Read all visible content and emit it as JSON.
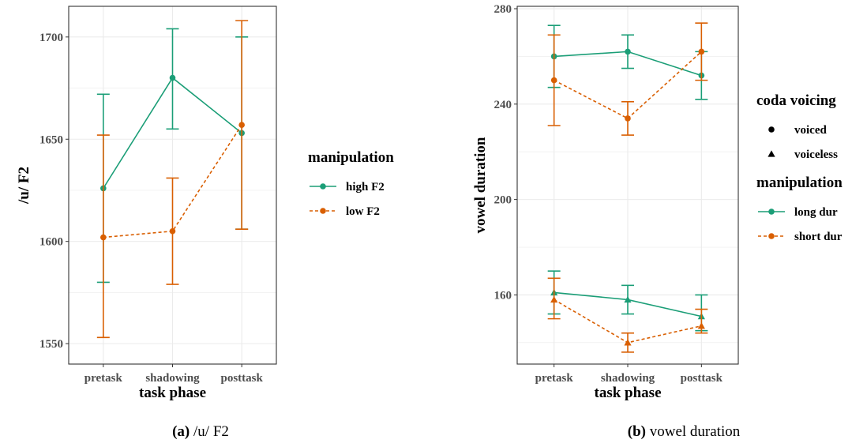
{
  "chart_data": [
    {
      "type": "line",
      "xlabel": "task phase",
      "ylabel": "/u/ F2",
      "categories": [
        "pretask",
        "shadowing",
        "posttask"
      ],
      "ylim": [
        1540,
        1715
      ],
      "yticks": [
        1550,
        1600,
        1650,
        1700
      ],
      "grid": true,
      "legend": {
        "title": "manipulation",
        "placement": "right"
      },
      "caption": {
        "label": "(a)",
        "text": "/u/ F2"
      },
      "series": [
        {
          "name": "high F2",
          "color": "#1b9e77",
          "dash": "solid",
          "shape": "circle",
          "values": [
            1626,
            1680,
            1653
          ],
          "err_low": [
            1580,
            1655,
            1606
          ],
          "err_high": [
            1672,
            1704,
            1700
          ]
        },
        {
          "name": "low F2",
          "color": "#d95f02",
          "dash": "dashed",
          "shape": "circle",
          "values": [
            1602,
            1605,
            1657
          ],
          "err_low": [
            1553,
            1579,
            1606
          ],
          "err_high": [
            1652,
            1631,
            1708
          ]
        }
      ]
    },
    {
      "type": "line",
      "xlabel": "task phase",
      "ylabel": "vowel duration",
      "categories": [
        "pretask",
        "shadowing",
        "posttask"
      ],
      "ylim": [
        131,
        281
      ],
      "yticks": [
        160,
        200,
        240,
        280
      ],
      "grid": true,
      "legend": [
        {
          "title": "coda voicing",
          "placement": "right",
          "items": [
            {
              "name": "voiced",
              "shape": "circle"
            },
            {
              "name": "voiceless",
              "shape": "triangle"
            }
          ]
        },
        {
          "title": "manipulation",
          "placement": "right",
          "items": [
            {
              "name": "long dur",
              "color": "#1b9e77",
              "dash": "solid"
            },
            {
              "name": "short dur",
              "color": "#d95f02",
              "dash": "dashed"
            }
          ]
        }
      ],
      "caption": {
        "label": "(b)",
        "text": "vowel duration"
      },
      "series": [
        {
          "name": "long dur",
          "voicing": "voiced",
          "color": "#1b9e77",
          "dash": "solid",
          "shape": "circle",
          "values": [
            260,
            262,
            252
          ],
          "err_low": [
            247,
            255,
            242
          ],
          "err_high": [
            273,
            269,
            262
          ]
        },
        {
          "name": "short dur",
          "voicing": "voiced",
          "color": "#d95f02",
          "dash": "dashed",
          "shape": "circle",
          "values": [
            250,
            234,
            262
          ],
          "err_low": [
            231,
            227,
            250
          ],
          "err_high": [
            269,
            241,
            274
          ]
        },
        {
          "name": "long dur",
          "voicing": "voiceless",
          "color": "#1b9e77",
          "dash": "solid",
          "shape": "triangle",
          "values": [
            161,
            158,
            151
          ],
          "err_low": [
            152,
            152,
            145
          ],
          "err_high": [
            170,
            164,
            160
          ]
        },
        {
          "name": "short dur",
          "voicing": "voiceless",
          "color": "#d95f02",
          "dash": "dashed",
          "shape": "triangle",
          "values": [
            158,
            140,
            147
          ],
          "err_low": [
            150,
            136,
            144
          ],
          "err_high": [
            167,
            144,
            154
          ]
        }
      ]
    }
  ]
}
